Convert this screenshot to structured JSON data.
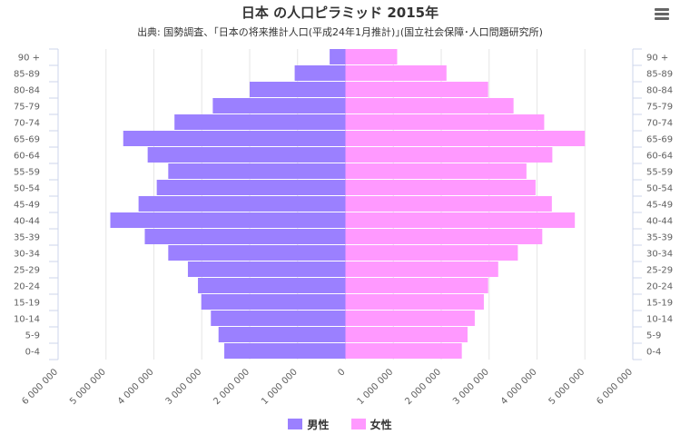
{
  "chart_data": {
    "type": "bar",
    "orientation": "horizontal",
    "title": "日本 の人口ピラミッド 2015年",
    "subtitle": "出典: 国勢調査、｢日本の将来推計人口(平成24年1月推計)｣(国立社会保障･人口問題研究所)",
    "categories": [
      "90 +",
      "85-89",
      "80-84",
      "75-79",
      "70-74",
      "65-69",
      "60-64",
      "55-59",
      "50-54",
      "45-49",
      "40-44",
      "35-39",
      "30-34",
      "25-29",
      "20-24",
      "15-19",
      "10-14",
      "5-9",
      "0-4"
    ],
    "series": [
      {
        "name": "男性",
        "color": "#9b80ff",
        "values": [
          330000,
          1060000,
          2000000,
          2770000,
          3570000,
          4640000,
          4130000,
          3700000,
          3940000,
          4320000,
          4910000,
          4190000,
          3700000,
          3290000,
          3080000,
          3010000,
          2810000,
          2650000,
          2530000
        ]
      },
      {
        "name": "女性",
        "color": "#ff99ff",
        "values": [
          1080000,
          2110000,
          2980000,
          3510000,
          4150000,
          5000000,
          4320000,
          3780000,
          3970000,
          4310000,
          4790000,
          4110000,
          3600000,
          3190000,
          2980000,
          2890000,
          2700000,
          2550000,
          2430000
        ]
      }
    ],
    "xlim": [
      -6000000,
      6000000
    ],
    "x_ticks": [
      -6000000,
      -5000000,
      -4000000,
      -3000000,
      -2000000,
      -1000000,
      0,
      1000000,
      2000000,
      3000000,
      4000000,
      5000000,
      6000000
    ],
    "x_tick_labels": [
      "6 000 000",
      "5 000 000",
      "4 000 000",
      "3 000 000",
      "2 000 000",
      "1 000 000",
      "0",
      "1 000 000",
      "2 000 000",
      "3 000 000",
      "4 000 000",
      "5 000 000",
      "6 000 000"
    ],
    "grid": true,
    "legend_position": "bottom-center",
    "category_axes": "left and right"
  }
}
